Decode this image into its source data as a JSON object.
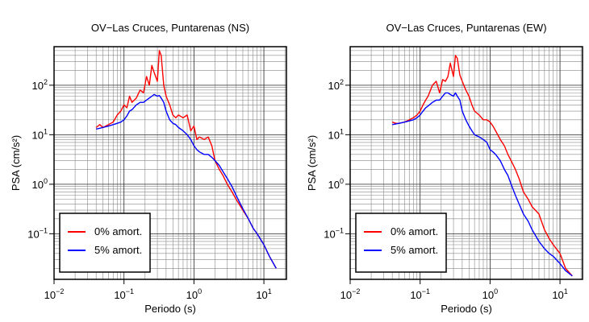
{
  "chart_data": [
    {
      "type": "line",
      "title": "OV−Las Cruces, Puntarenas (NS)",
      "xlabel": "Periodo (s)",
      "ylabel": "PSA (cm/s²)",
      "xscale": "log",
      "yscale": "log",
      "grid": true,
      "legend": "lower left",
      "xlim": [
        0.01,
        21
      ],
      "ylim": [
        0.012,
        600
      ],
      "xticks": [
        {
          "value": 0.01,
          "label": "10",
          "exponent": "−2"
        },
        {
          "value": 0.1,
          "label": "10",
          "exponent": "−1"
        },
        {
          "value": 1,
          "label": "10",
          "exponent": "0"
        },
        {
          "value": 10,
          "label": "10",
          "exponent": "1"
        }
      ],
      "yticks": [
        {
          "value": 0.1,
          "label": "10",
          "exponent": "−1"
        },
        {
          "value": 1,
          "label": "10",
          "exponent": "0"
        },
        {
          "value": 10,
          "label": "10",
          "exponent": "1"
        },
        {
          "value": 100,
          "label": "10",
          "exponent": "2"
        }
      ],
      "x": [
        0.04,
        0.045,
        0.05,
        0.06,
        0.07,
        0.08,
        0.09,
        0.1,
        0.11,
        0.12,
        0.13,
        0.15,
        0.17,
        0.19,
        0.21,
        0.23,
        0.25,
        0.27,
        0.3,
        0.32,
        0.34,
        0.37,
        0.4,
        0.45,
        0.5,
        0.55,
        0.6,
        0.7,
        0.8,
        0.9,
        1.0,
        1.1,
        1.2,
        1.4,
        1.6,
        1.8,
        2.0,
        2.3,
        2.6,
        3,
        3.5,
        4,
        5,
        6,
        7,
        8,
        10,
        12,
        15
      ],
      "series": [
        {
          "name": "0% amort.",
          "color": "#ff0000",
          "values": [
            14,
            16,
            14,
            16,
            18,
            25,
            30,
            40,
            35,
            60,
            45,
            55,
            80,
            70,
            150,
            100,
            250,
            180,
            120,
            500,
            400,
            100,
            60,
            40,
            25,
            22,
            25,
            22,
            25,
            12,
            15,
            8,
            9,
            8,
            9,
            6,
            3,
            2,
            1.5,
            1,
            0.7,
            0.5,
            0.3,
            0.2,
            0.13,
            0.1,
            0.06,
            0.035,
            0.02
          ]
        },
        {
          "name": "5% amort.",
          "color": "#0000ff",
          "values": [
            13,
            13.5,
            14,
            15,
            16,
            17,
            18,
            20,
            24,
            30,
            32,
            40,
            45,
            45,
            50,
            55,
            60,
            65,
            60,
            62,
            55,
            45,
            30,
            20,
            17,
            16,
            14,
            12,
            10,
            8,
            6,
            5,
            4.5,
            4,
            4,
            3.5,
            3,
            2.4,
            1.8,
            1.3,
            0.9,
            0.6,
            0.32,
            0.2,
            0.13,
            0.1,
            0.06,
            0.035,
            0.02
          ]
        }
      ]
    },
    {
      "type": "line",
      "title": "OV−Las Cruces, Puntarenas (EW)",
      "xlabel": "Periodo (s)",
      "ylabel": "PSA (cm/s²)",
      "xscale": "log",
      "yscale": "log",
      "grid": true,
      "legend": "lower left",
      "xlim": [
        0.01,
        21
      ],
      "ylim": [
        0.012,
        600
      ],
      "xticks": [
        {
          "value": 0.01,
          "label": "10",
          "exponent": "−2"
        },
        {
          "value": 0.1,
          "label": "10",
          "exponent": "−1"
        },
        {
          "value": 1,
          "label": "10",
          "exponent": "0"
        },
        {
          "value": 10,
          "label": "10",
          "exponent": "1"
        }
      ],
      "yticks": [
        {
          "value": 0.1,
          "label": "10",
          "exponent": "−1"
        },
        {
          "value": 1,
          "label": "10",
          "exponent": "0"
        },
        {
          "value": 10,
          "label": "10",
          "exponent": "1"
        },
        {
          "value": 100,
          "label": "10",
          "exponent": "2"
        }
      ],
      "x": [
        0.04,
        0.045,
        0.05,
        0.06,
        0.07,
        0.08,
        0.09,
        0.1,
        0.11,
        0.12,
        0.13,
        0.15,
        0.17,
        0.19,
        0.21,
        0.23,
        0.25,
        0.27,
        0.3,
        0.32,
        0.34,
        0.37,
        0.4,
        0.45,
        0.5,
        0.55,
        0.6,
        0.7,
        0.8,
        0.9,
        1.0,
        1.1,
        1.2,
        1.4,
        1.6,
        1.8,
        2.0,
        2.3,
        2.6,
        3,
        3.5,
        4,
        5,
        6,
        7,
        8,
        10,
        12,
        15
      ],
      "series": [
        {
          "name": "0% amort.",
          "color": "#ff0000",
          "values": [
            18,
            17,
            17,
            18,
            20,
            22,
            25,
            30,
            40,
            50,
            60,
            100,
            120,
            70,
            130,
            120,
            150,
            280,
            150,
            400,
            350,
            160,
            120,
            80,
            60,
            40,
            30,
            25,
            20,
            20,
            18,
            15,
            12,
            8,
            6,
            4,
            3,
            2,
            1.3,
            0.7,
            0.5,
            0.35,
            0.25,
            0.12,
            0.08,
            0.06,
            0.04,
            0.02,
            0.014
          ]
        },
        {
          "name": "5% amort.",
          "color": "#0000ff",
          "values": [
            16,
            16.5,
            17,
            18,
            19,
            20,
            22,
            25,
            30,
            35,
            38,
            45,
            50,
            50,
            60,
            70,
            70,
            65,
            60,
            70,
            60,
            50,
            30,
            20,
            15,
            12,
            10,
            9,
            8,
            7,
            5,
            4.5,
            4,
            3,
            2,
            1.5,
            1,
            0.6,
            0.4,
            0.25,
            0.18,
            0.12,
            0.07,
            0.05,
            0.04,
            0.035,
            0.025,
            0.018,
            0.014
          ]
        }
      ]
    }
  ]
}
